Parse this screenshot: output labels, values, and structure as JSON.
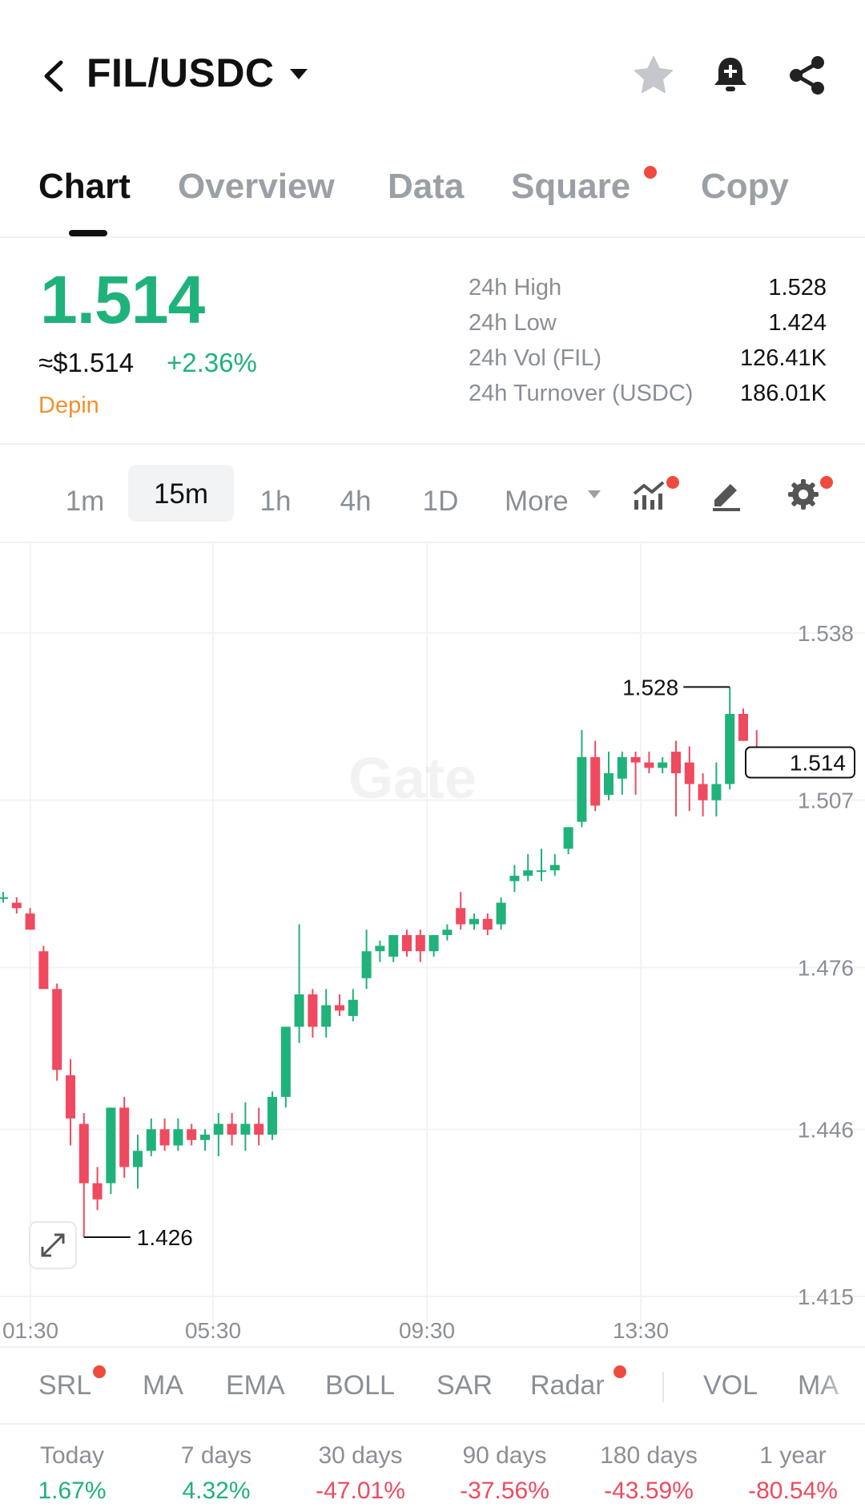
{
  "header": {
    "pair": "FIL/USDC",
    "icons": [
      "back-icon",
      "star-icon",
      "bell-plus-icon",
      "share-icon"
    ]
  },
  "tabs": [
    {
      "label": "Chart",
      "active": true
    },
    {
      "label": "Overview"
    },
    {
      "label": "Data"
    },
    {
      "label": "Square",
      "dot": true
    },
    {
      "label": "Copy"
    }
  ],
  "price": {
    "last": "1.514",
    "usd": "≈$1.514",
    "change": "+2.36%",
    "tag": "Depin"
  },
  "stats": [
    {
      "label": "24h High",
      "value": "1.528"
    },
    {
      "label": "24h Low",
      "value": "1.424"
    },
    {
      "label": "24h Vol (FIL)",
      "value": "126.41K"
    },
    {
      "label": "24h Turnover (USDC)",
      "value": "186.01K"
    }
  ],
  "intervals": {
    "items": [
      "1m",
      "15m",
      "1h",
      "4h",
      "1D"
    ],
    "active": "15m",
    "more": "More"
  },
  "colors": {
    "up": "#1fb27a",
    "down": "#ef4a5f",
    "accent_dot": "#f04a3f"
  },
  "chart_data": {
    "type": "candlestick",
    "y_ticks": [
      "1.538",
      "1.507",
      "1.476",
      "1.446",
      "1.415"
    ],
    "x_ticks": [
      "01:30",
      "05:30",
      "09:30",
      "13:30"
    ],
    "ylim": [
      1.415,
      1.538
    ],
    "high_marker": "1.528",
    "low_marker": "1.426",
    "last_price_label": "1.514",
    "watermark": "Gate",
    "candles": [
      {
        "o": 1.489,
        "h": 1.49,
        "l": 1.488,
        "c": 1.489
      },
      {
        "o": 1.488,
        "h": 1.489,
        "l": 1.486,
        "c": 1.487
      },
      {
        "o": 1.486,
        "h": 1.487,
        "l": 1.483,
        "c": 1.483
      },
      {
        "o": 1.479,
        "h": 1.48,
        "l": 1.472,
        "c": 1.472
      },
      {
        "o": 1.472,
        "h": 1.473,
        "l": 1.455,
        "c": 1.457
      },
      {
        "o": 1.456,
        "h": 1.459,
        "l": 1.443,
        "c": 1.448
      },
      {
        "o": 1.447,
        "h": 1.449,
        "l": 1.426,
        "c": 1.436
      },
      {
        "o": 1.436,
        "h": 1.439,
        "l": 1.431,
        "c": 1.433
      },
      {
        "o": 1.436,
        "h": 1.45,
        "l": 1.434,
        "c": 1.45
      },
      {
        "o": 1.45,
        "h": 1.452,
        "l": 1.437,
        "c": 1.439
      },
      {
        "o": 1.439,
        "h": 1.445,
        "l": 1.435,
        "c": 1.442
      },
      {
        "o": 1.442,
        "h": 1.448,
        "l": 1.441,
        "c": 1.446
      },
      {
        "o": 1.446,
        "h": 1.448,
        "l": 1.442,
        "c": 1.443
      },
      {
        "o": 1.443,
        "h": 1.448,
        "l": 1.442,
        "c": 1.446
      },
      {
        "o": 1.446,
        "h": 1.447,
        "l": 1.443,
        "c": 1.444
      },
      {
        "o": 1.444,
        "h": 1.446,
        "l": 1.442,
        "c": 1.445
      },
      {
        "o": 1.445,
        "h": 1.449,
        "l": 1.441,
        "c": 1.447
      },
      {
        "o": 1.447,
        "h": 1.449,
        "l": 1.443,
        "c": 1.445
      },
      {
        "o": 1.445,
        "h": 1.451,
        "l": 1.442,
        "c": 1.447
      },
      {
        "o": 1.447,
        "h": 1.45,
        "l": 1.443,
        "c": 1.445
      },
      {
        "o": 1.445,
        "h": 1.453,
        "l": 1.444,
        "c": 1.452
      },
      {
        "o": 1.452,
        "h": 1.465,
        "l": 1.45,
        "c": 1.465
      },
      {
        "o": 1.465,
        "h": 1.484,
        "l": 1.462,
        "c": 1.471
      },
      {
        "o": 1.471,
        "h": 1.472,
        "l": 1.463,
        "c": 1.465
      },
      {
        "o": 1.465,
        "h": 1.472,
        "l": 1.463,
        "c": 1.469
      },
      {
        "o": 1.469,
        "h": 1.471,
        "l": 1.467,
        "c": 1.468
      },
      {
        "o": 1.467,
        "h": 1.472,
        "l": 1.466,
        "c": 1.47
      },
      {
        "o": 1.474,
        "h": 1.483,
        "l": 1.472,
        "c": 1.479
      },
      {
        "o": 1.479,
        "h": 1.481,
        "l": 1.477,
        "c": 1.48
      },
      {
        "o": 1.478,
        "h": 1.482,
        "l": 1.477,
        "c": 1.482
      },
      {
        "o": 1.482,
        "h": 1.483,
        "l": 1.478,
        "c": 1.479
      },
      {
        "o": 1.482,
        "h": 1.483,
        "l": 1.477,
        "c": 1.479
      },
      {
        "o": 1.479,
        "h": 1.482,
        "l": 1.478,
        "c": 1.482
      },
      {
        "o": 1.482,
        "h": 1.484,
        "l": 1.481,
        "c": 1.483
      },
      {
        "o": 1.487,
        "h": 1.49,
        "l": 1.483,
        "c": 1.484
      },
      {
        "o": 1.484,
        "h": 1.486,
        "l": 1.483,
        "c": 1.485
      },
      {
        "o": 1.485,
        "h": 1.486,
        "l": 1.482,
        "c": 1.483
      },
      {
        "o": 1.484,
        "h": 1.489,
        "l": 1.483,
        "c": 1.488
      },
      {
        "o": 1.492,
        "h": 1.495,
        "l": 1.49,
        "c": 1.493
      },
      {
        "o": 1.493,
        "h": 1.497,
        "l": 1.492,
        "c": 1.494
      },
      {
        "o": 1.494,
        "h": 1.498,
        "l": 1.492,
        "c": 1.494
      },
      {
        "o": 1.494,
        "h": 1.497,
        "l": 1.493,
        "c": 1.495
      },
      {
        "o": 1.498,
        "h": 1.502,
        "l": 1.497,
        "c": 1.502
      },
      {
        "o": 1.503,
        "h": 1.52,
        "l": 1.502,
        "c": 1.515
      },
      {
        "o": 1.515,
        "h": 1.518,
        "l": 1.505,
        "c": 1.506
      },
      {
        "o": 1.508,
        "h": 1.516,
        "l": 1.507,
        "c": 1.512
      },
      {
        "o": 1.511,
        "h": 1.516,
        "l": 1.508,
        "c": 1.515
      },
      {
        "o": 1.515,
        "h": 1.516,
        "l": 1.508,
        "c": 1.514
      },
      {
        "o": 1.514,
        "h": 1.516,
        "l": 1.512,
        "c": 1.513
      },
      {
        "o": 1.513,
        "h": 1.515,
        "l": 1.512,
        "c": 1.514
      },
      {
        "o": 1.516,
        "h": 1.518,
        "l": 1.504,
        "c": 1.512
      },
      {
        "o": 1.514,
        "h": 1.517,
        "l": 1.505,
        "c": 1.51
      },
      {
        "o": 1.51,
        "h": 1.512,
        "l": 1.504,
        "c": 1.507
      },
      {
        "o": 1.507,
        "h": 1.514,
        "l": 1.504,
        "c": 1.51
      },
      {
        "o": 1.51,
        "h": 1.528,
        "l": 1.509,
        "c": 1.523
      },
      {
        "o": 1.523,
        "h": 1.524,
        "l": 1.518,
        "c": 1.518
      },
      {
        "o": 1.516,
        "h": 1.52,
        "l": 1.512,
        "c": 1.514
      }
    ]
  },
  "indicators": [
    "SRL",
    "MA",
    "EMA",
    "BOLL",
    "SAR",
    "Radar",
    "VOL",
    "MA"
  ],
  "performance": [
    {
      "label": "Today",
      "value": "1.67%",
      "dir": "up"
    },
    {
      "label": "7 days",
      "value": "4.32%",
      "dir": "up"
    },
    {
      "label": "30 days",
      "value": "-47.01%",
      "dir": "down"
    },
    {
      "label": "90 days",
      "value": "-37.56%",
      "dir": "down"
    },
    {
      "label": "180 days",
      "value": "-43.59%",
      "dir": "down"
    },
    {
      "label": "1 year",
      "value": "-80.54%",
      "dir": "down"
    }
  ]
}
